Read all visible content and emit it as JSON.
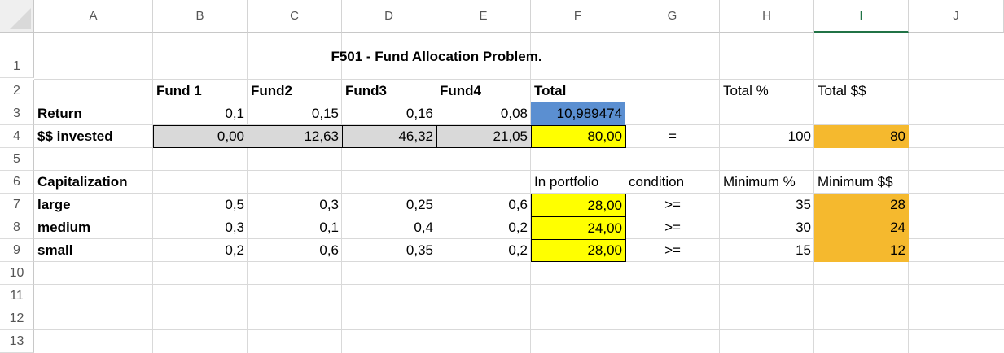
{
  "sheet": {
    "columns": [
      "A",
      "B",
      "C",
      "D",
      "E",
      "F",
      "G",
      "H",
      "I",
      "J"
    ],
    "rows": [
      "1",
      "2",
      "3",
      "4",
      "5",
      "6",
      "7",
      "8",
      "9",
      "10",
      "11",
      "12",
      "13"
    ],
    "title": "F501 - Fund Allocation Problem.",
    "headers": {
      "fund1": "Fund 1",
      "fund2": "Fund2",
      "fund3": "Fund3",
      "fund4": "Fund4",
      "total": "Total",
      "total_pct": "Total %",
      "total_usd": "Total $$"
    },
    "row3": {
      "label": "Return",
      "b": "0,1",
      "c": "0,15",
      "d": "0,16",
      "e": "0,08",
      "f": "10,989474"
    },
    "row4": {
      "label": "$$ invested",
      "b": "0,00",
      "c": "12,63",
      "d": "46,32",
      "e": "21,05",
      "f": "80,00",
      "g": "=",
      "h": "100",
      "i": "80"
    },
    "row6": {
      "label": "Capitalization",
      "f": "In portfolio",
      "g": "condition",
      "h": "Minimum %",
      "i": "Minimum $$"
    },
    "row7": {
      "label": "large",
      "b": "0,5",
      "c": "0,3",
      "d": "0,25",
      "e": "0,6",
      "f": "28,00",
      "g": ">=",
      "h": "35",
      "i": "28"
    },
    "row8": {
      "label": "medium",
      "b": "0,3",
      "c": "0,1",
      "d": "0,4",
      "e": "0,2",
      "f": "24,00",
      "g": ">=",
      "h": "30",
      "i": "24"
    },
    "row9": {
      "label": "small",
      "b": "0,2",
      "c": "0,6",
      "d": "0,35",
      "e": "0,2",
      "f": "28,00",
      "g": ">=",
      "h": "15",
      "i": "12"
    }
  },
  "colors": {
    "gray_fill": "#d9d9d9",
    "yellow_fill": "#ffff00",
    "blue_fill": "#5b8fd1",
    "orange_fill": "#f5b92e",
    "selected_header": "#217346"
  }
}
